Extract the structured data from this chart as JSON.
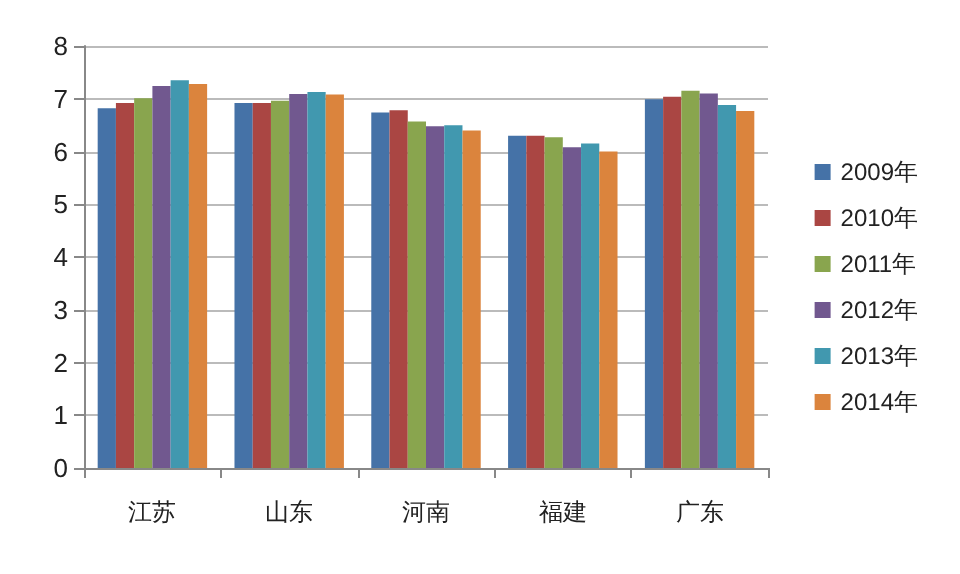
{
  "chart_data": {
    "type": "bar",
    "categories": [
      "江苏",
      "山东",
      "河南",
      "福建",
      "广东"
    ],
    "series": [
      {
        "name": "2009年",
        "color": "#4572a7",
        "values": [
          6.82,
          6.92,
          6.74,
          6.3,
          6.99
        ]
      },
      {
        "name": "2010年",
        "color": "#aa4643",
        "values": [
          6.92,
          6.92,
          6.78,
          6.3,
          7.04
        ]
      },
      {
        "name": "2011年",
        "color": "#89a54e",
        "values": [
          7.01,
          6.96,
          6.57,
          6.27,
          7.15
        ]
      },
      {
        "name": "2012年",
        "color": "#71588f",
        "values": [
          7.24,
          7.09,
          6.48,
          6.08,
          7.1
        ]
      },
      {
        "name": "2013年",
        "color": "#4198af",
        "values": [
          7.35,
          7.13,
          6.5,
          6.15,
          6.88
        ]
      },
      {
        "name": "2014年",
        "color": "#db843d",
        "values": [
          7.28,
          7.08,
          6.4,
          6.0,
          6.77
        ]
      }
    ],
    "ylim": [
      0,
      8
    ],
    "yticks": [
      0,
      1,
      2,
      3,
      4,
      5,
      6,
      7,
      8
    ],
    "grid": "y",
    "legend": "right"
  }
}
